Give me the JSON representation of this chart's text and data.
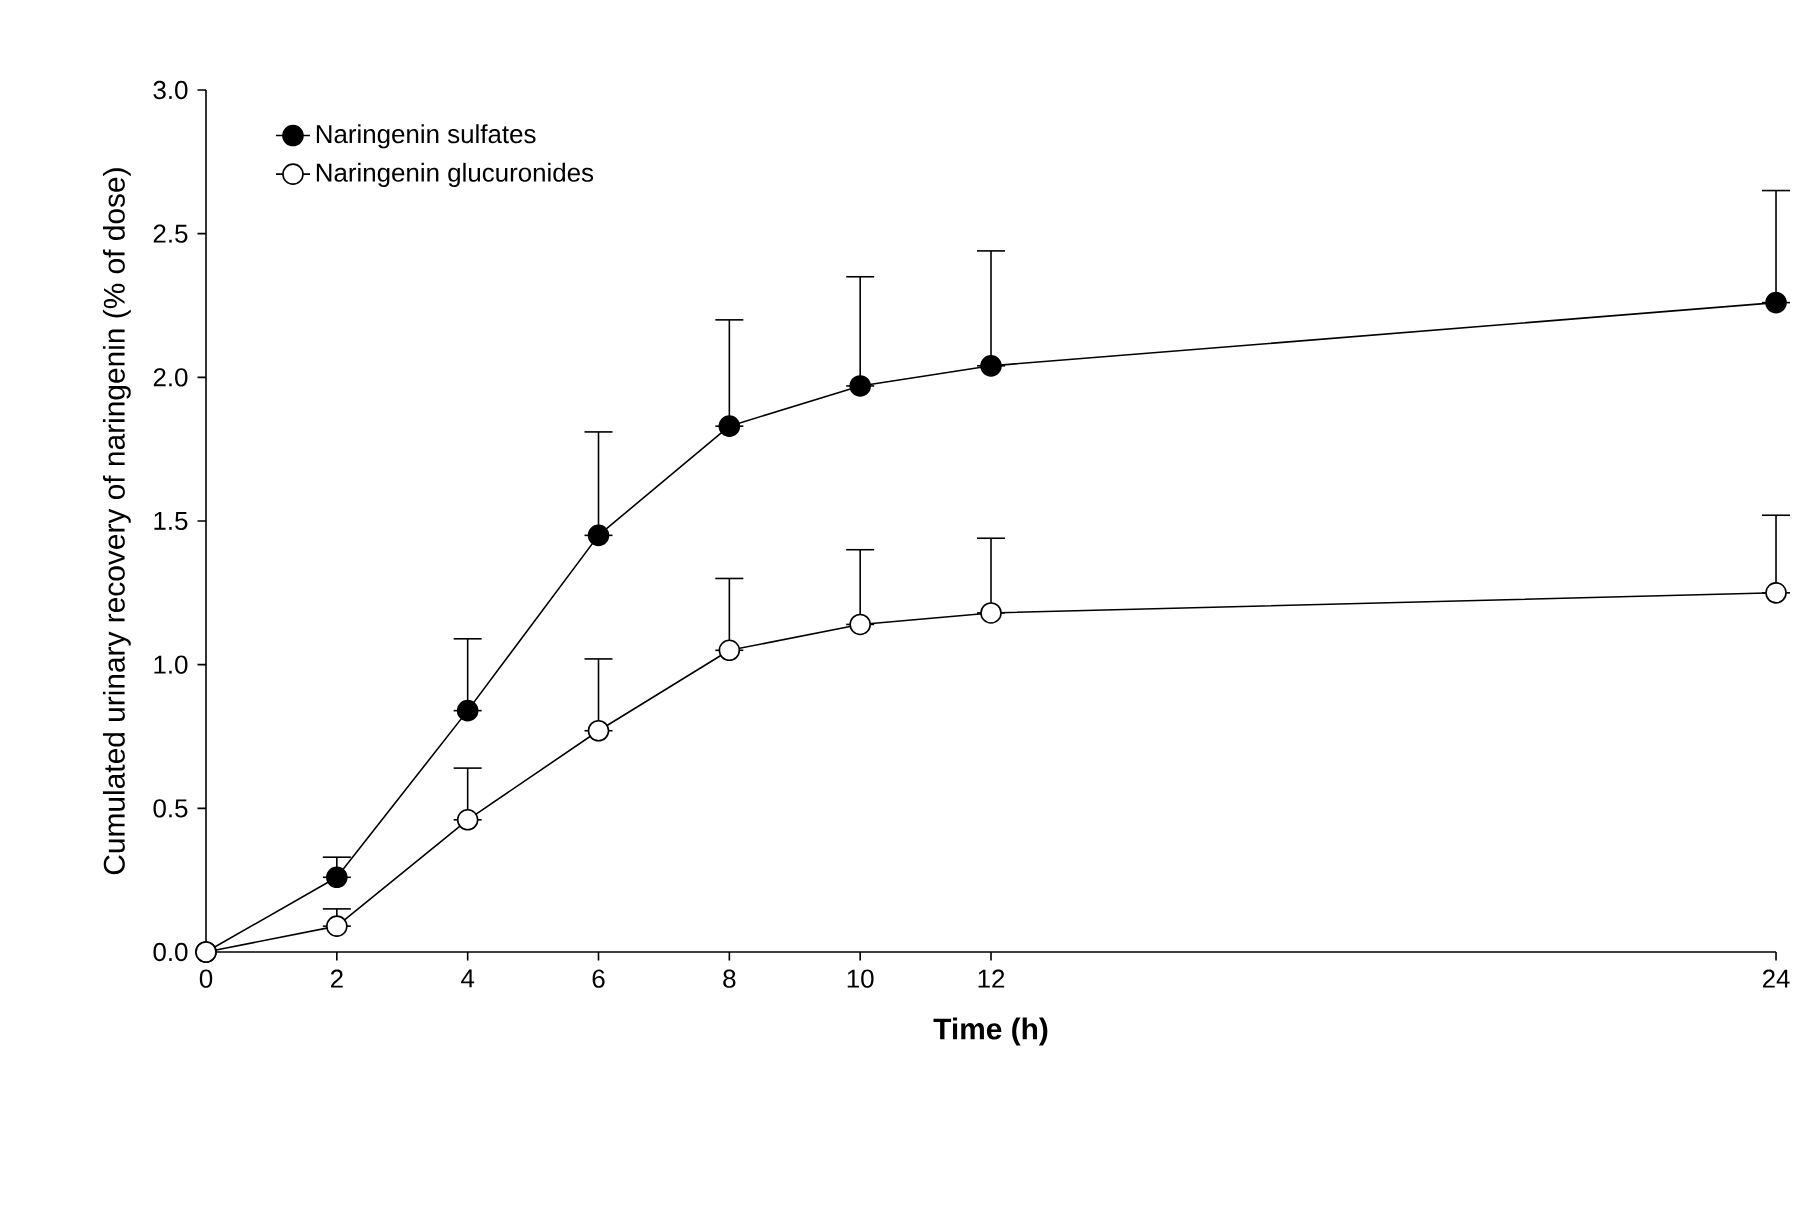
{
  "chart_data": {
    "type": "line",
    "xlabel": "Time (h)",
    "ylabel": "Cumulated urinary recovery of naringenin (% of dose)",
    "x": [
      0,
      2,
      4,
      6,
      8,
      10,
      12,
      24
    ],
    "series": [
      {
        "name": "Naringenin sulfates",
        "color": "#000000",
        "values": [
          0,
          0.26,
          0.84,
          1.45,
          1.83,
          1.97,
          2.04,
          2.26
        ],
        "errors": [
          null,
          [
            0.26,
            0.33
          ],
          [
            0.84,
            1.09
          ],
          [
            1.45,
            1.81
          ],
          [
            1.83,
            2.2
          ],
          [
            1.97,
            2.35
          ],
          [
            2.04,
            2.44
          ],
          [
            2.26,
            2.65
          ]
        ]
      },
      {
        "name": "Naringenin glucuronides",
        "color": "#000000",
        "values": [
          0,
          0.09,
          0.46,
          0.77,
          1.05,
          1.14,
          1.18,
          1.25
        ],
        "errors": [
          null,
          [
            0.09,
            0.15
          ],
          [
            0.46,
            0.64
          ],
          [
            0.77,
            1.02
          ],
          [
            1.05,
            1.3
          ],
          [
            1.14,
            1.4
          ],
          [
            1.18,
            1.44
          ],
          [
            1.25,
            1.52
          ]
        ]
      }
    ],
    "xlim": [
      0,
      24
    ],
    "xticks": [
      0,
      2,
      4,
      6,
      8,
      10,
      12,
      24
    ],
    "ylim": [
      0,
      3
    ],
    "yticks": [
      {
        "value": 0,
        "label": "0.0"
      },
      {
        "value": 0.5,
        "label": "0.5"
      },
      {
        "value": 1,
        "label": "1.0"
      },
      {
        "value": 1.5,
        "label": "1.5"
      },
      {
        "value": 2,
        "label": "2.0"
      },
      {
        "value": 2.5,
        "label": "2.5"
      },
      {
        "value": 3,
        "label": "3.0"
      }
    ],
    "legend": "top left",
    "marker": "circle",
    "line_style": "solid",
    "grid": false
  }
}
